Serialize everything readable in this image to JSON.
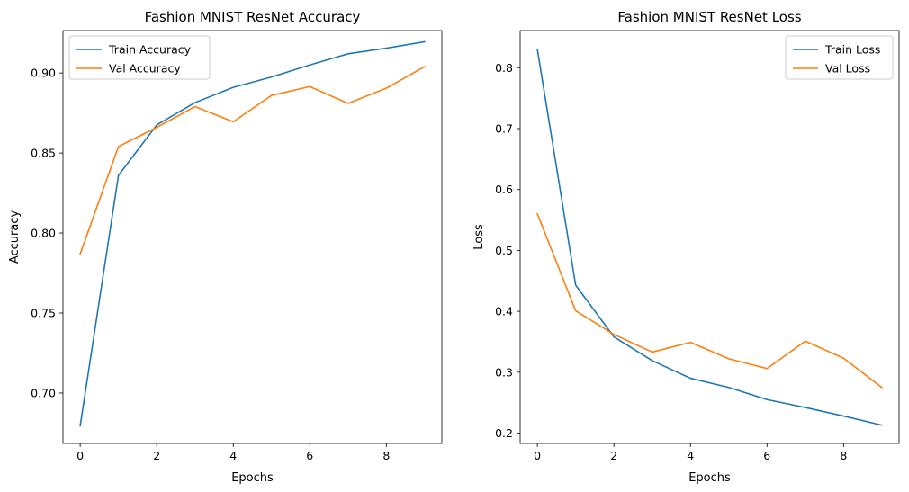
{
  "chart_data": [
    {
      "type": "line",
      "title": "Fashion MNIST ResNet Accuracy",
      "xlabel": "Epochs",
      "ylabel": "Accuracy",
      "x": [
        0,
        1,
        2,
        3,
        4,
        5,
        6,
        7,
        8,
        9
      ],
      "xlim": [
        -0.45,
        9.45
      ],
      "ylim": [
        0.6685,
        0.9265
      ],
      "xticks": [
        0,
        2,
        4,
        6,
        8
      ],
      "yticks": [
        0.7,
        0.75,
        0.8,
        0.85,
        0.9
      ],
      "ytick_format": 2,
      "legend": "upper-left",
      "series": [
        {
          "name": "Train Accuracy",
          "color": "#1f77b4",
          "values": [
            0.6795,
            0.836,
            0.8675,
            0.8815,
            0.891,
            0.8975,
            0.905,
            0.912,
            0.9155,
            0.9195
          ]
        },
        {
          "name": "Val Accuracy",
          "color": "#ff7f0e",
          "values": [
            0.787,
            0.854,
            0.866,
            0.879,
            0.8695,
            0.886,
            0.8915,
            0.881,
            0.8905,
            0.904
          ]
        }
      ]
    },
    {
      "type": "line",
      "title": "Fashion MNIST ResNet Loss",
      "xlabel": "Epochs",
      "ylabel": "Loss",
      "x": [
        0,
        1,
        2,
        3,
        4,
        5,
        6,
        7,
        8,
        9
      ],
      "xlim": [
        -0.45,
        9.45
      ],
      "ylim": [
        0.183,
        0.861
      ],
      "xticks": [
        0,
        2,
        4,
        6,
        8
      ],
      "yticks": [
        0.2,
        0.3,
        0.4,
        0.5,
        0.6,
        0.7,
        0.8
      ],
      "ytick_format": 1,
      "legend": "upper-right",
      "series": [
        {
          "name": "Train Loss",
          "color": "#1f77b4",
          "values": [
            0.83,
            0.443,
            0.358,
            0.319,
            0.29,
            0.275,
            0.255,
            0.242,
            0.228,
            0.213
          ]
        },
        {
          "name": "Val Loss",
          "color": "#ff7f0e",
          "values": [
            0.56,
            0.401,
            0.362,
            0.333,
            0.349,
            0.322,
            0.306,
            0.351,
            0.323,
            0.275
          ]
        }
      ]
    }
  ]
}
